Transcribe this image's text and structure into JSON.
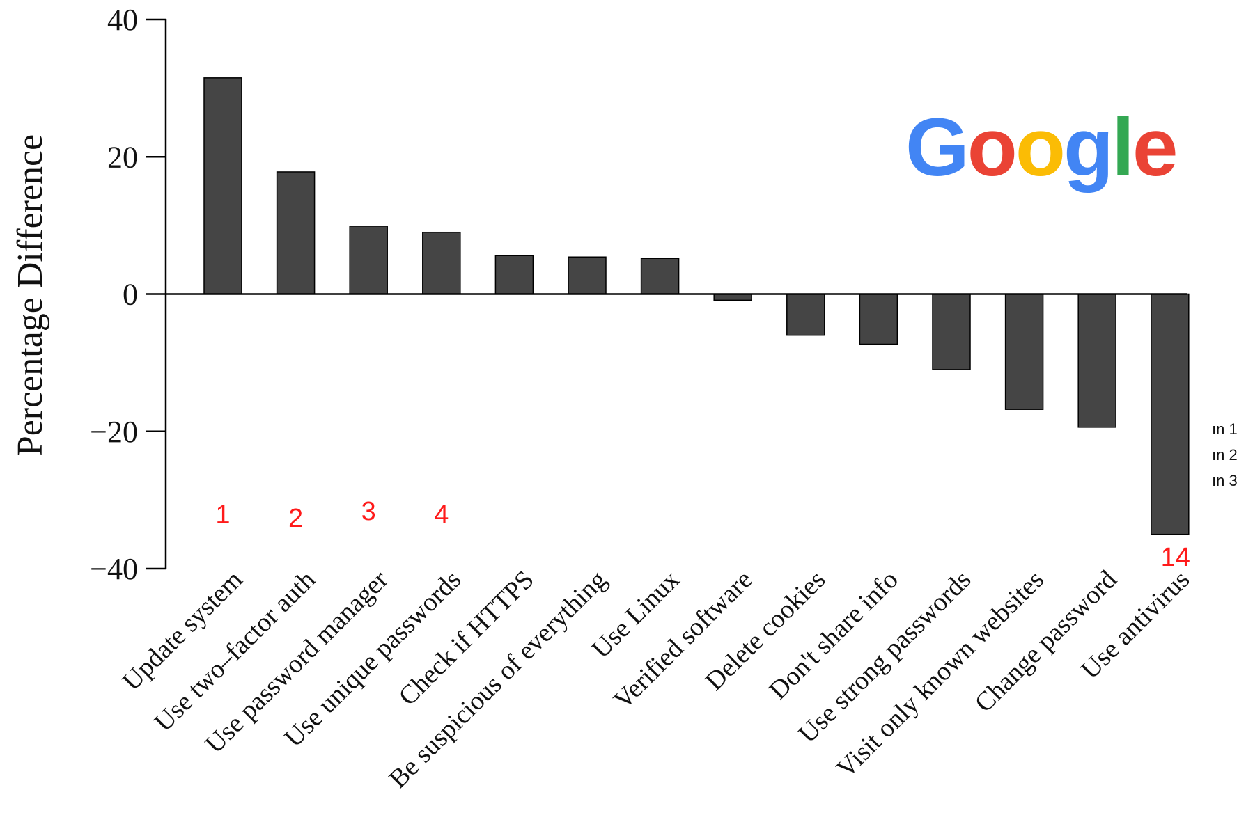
{
  "chart_data": {
    "type": "bar",
    "title": "",
    "xlabel": "",
    "ylabel": "Percentage Difference",
    "ylim": [
      -40,
      40
    ],
    "yticks": [
      -40,
      -20,
      0,
      20,
      40
    ],
    "ytick_labels": [
      "−40",
      "−20",
      "0",
      "20",
      "40"
    ],
    "grid": false,
    "categories": [
      "Update system",
      "Use two–factor auth",
      "Use password manager",
      "Use unique passwords",
      "Check if HTTPS",
      "Be suspicious of everything",
      "Use Linux",
      "Verified software",
      "Delete cookies",
      "Don't share info",
      "Use strong passwords",
      "Visit only known websites",
      "Change password",
      "Use antivirus"
    ],
    "values": [
      31.5,
      17.8,
      9.9,
      9.0,
      5.6,
      5.4,
      5.2,
      -0.9,
      -6.0,
      -7.3,
      -11.0,
      -16.8,
      -19.4,
      -35.0
    ],
    "bar_color": "#454545",
    "annotations": [
      {
        "text": "1",
        "category_index": 0
      },
      {
        "text": "2",
        "category_index": 1
      },
      {
        "text": "3",
        "category_index": 2
      },
      {
        "text": "4",
        "category_index": 3
      },
      {
        "text": "14",
        "category_index": 13
      }
    ],
    "annotation_color": "#ff1a1a",
    "side_notes": [
      "ın 1",
      "ın 2",
      "ın 3"
    ]
  },
  "logo": {
    "letters": [
      "G",
      "o",
      "o",
      "g",
      "l",
      "e"
    ],
    "colors": [
      "#4285F4",
      "#EA4335",
      "#FBBC05",
      "#4285F4",
      "#34A853",
      "#EA4335"
    ]
  }
}
